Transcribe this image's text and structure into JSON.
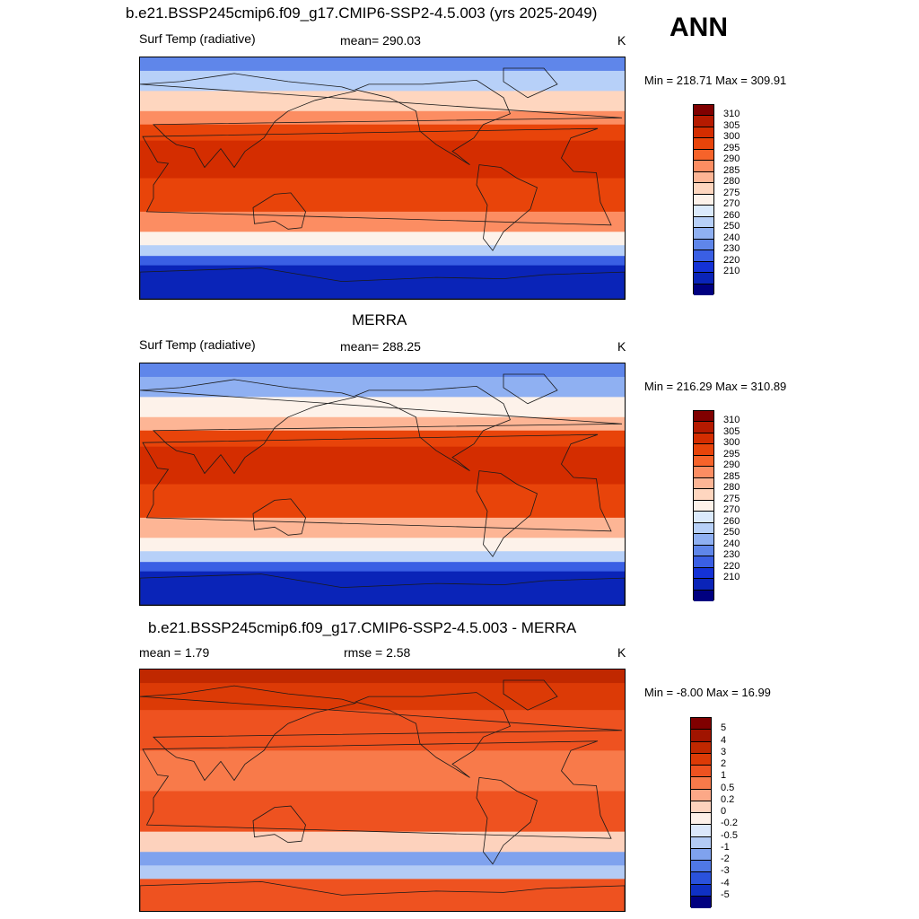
{
  "season": "ANN",
  "panels": [
    {
      "title": "b.e21.BSSP245cmip6.f09_g17.CMIP6-SSP2-4.5.003 (yrs 2025-2049)",
      "left_label": "Surf Temp (radiative)",
      "center_label": "mean= 290.03",
      "units": "K",
      "minmax": "Min = 218.71 Max = 309.91",
      "colorbar_labels": [
        "310",
        "305",
        "300",
        "295",
        "290",
        "285",
        "280",
        "275",
        "270",
        "260",
        "250",
        "240",
        "230",
        "220",
        "210"
      ],
      "colors": [
        "#800000",
        "#b51a00",
        "#d42d00",
        "#e8440a",
        "#f6632a",
        "#fc8d62",
        "#fdb595",
        "#fed6bf",
        "#fdf2ea",
        "#dbeafc",
        "#b7d0f8",
        "#8fb0f2",
        "#5f86ea",
        "#3a5fe4",
        "#1432d6",
        "#0a24b8",
        "#000080"
      ],
      "zones": [
        {
          "lat": 80,
          "colorIndex": 12
        },
        {
          "lat": 65,
          "colorIndex": 10
        },
        {
          "lat": 50,
          "colorIndex": 7
        },
        {
          "lat": 40,
          "colorIndex": 5
        },
        {
          "lat": 28,
          "colorIndex": 3
        },
        {
          "lat": 0,
          "colorIndex": 2
        },
        {
          "lat": -25,
          "colorIndex": 3
        },
        {
          "lat": -40,
          "colorIndex": 5
        },
        {
          "lat": -50,
          "colorIndex": 8
        },
        {
          "lat": -58,
          "colorIndex": 10
        },
        {
          "lat": -65,
          "colorIndex": 13
        },
        {
          "lat": -90,
          "colorIndex": 15
        }
      ]
    },
    {
      "title": "MERRA",
      "left_label": "Surf Temp (radiative)",
      "center_label": "mean= 288.25",
      "units": "K",
      "minmax": "Min = 216.29 Max = 310.89",
      "colorbar_labels": [
        "310",
        "305",
        "300",
        "295",
        "290",
        "285",
        "280",
        "275",
        "270",
        "260",
        "250",
        "240",
        "230",
        "220",
        "210"
      ],
      "colors": [
        "#800000",
        "#b51a00",
        "#d42d00",
        "#e8440a",
        "#f6632a",
        "#fc8d62",
        "#fdb595",
        "#fed6bf",
        "#fdf2ea",
        "#dbeafc",
        "#b7d0f8",
        "#8fb0f2",
        "#5f86ea",
        "#3a5fe4",
        "#1432d6",
        "#0a24b8",
        "#000080"
      ],
      "zones": [
        {
          "lat": 80,
          "colorIndex": 12
        },
        {
          "lat": 65,
          "colorIndex": 11
        },
        {
          "lat": 50,
          "colorIndex": 8
        },
        {
          "lat": 40,
          "colorIndex": 6
        },
        {
          "lat": 28,
          "colorIndex": 3
        },
        {
          "lat": 0,
          "colorIndex": 2
        },
        {
          "lat": -25,
          "colorIndex": 3
        },
        {
          "lat": -40,
          "colorIndex": 6
        },
        {
          "lat": -50,
          "colorIndex": 8
        },
        {
          "lat": -58,
          "colorIndex": 10
        },
        {
          "lat": -65,
          "colorIndex": 13
        },
        {
          "lat": -90,
          "colorIndex": 15
        }
      ]
    },
    {
      "title": "b.e21.BSSP245cmip6.f09_g17.CMIP6-SSP2-4.5.003 - MERRA",
      "left_label": "mean =   1.79",
      "center_label": "rmse =   2.58",
      "units": "K",
      "minmax": "Min =  -8.00 Max =  16.99",
      "colorbar_labels": [
        "5",
        "4",
        "3",
        "2",
        "1",
        "0.5",
        "0.2",
        "0",
        "-0.2",
        "-0.5",
        "-1",
        "-2",
        "-3",
        "-4",
        "-5"
      ],
      "colors": [
        "#800000",
        "#a01400",
        "#c02800",
        "#dc3a06",
        "#ee5220",
        "#f87a4a",
        "#fca887",
        "#fdd2bd",
        "#fdf0e8",
        "#dbe7fa",
        "#b3cbf5",
        "#7fa2ee",
        "#4f78e6",
        "#2a52dc",
        "#0f30c4",
        "#000080"
      ],
      "zones": [
        {
          "lat": 80,
          "colorIndex": 2
        },
        {
          "lat": 60,
          "colorIndex": 3
        },
        {
          "lat": 30,
          "colorIndex": 4
        },
        {
          "lat": 0,
          "colorIndex": 5
        },
        {
          "lat": -30,
          "colorIndex": 4
        },
        {
          "lat": -45,
          "colorIndex": 7
        },
        {
          "lat": -55,
          "colorIndex": 11
        },
        {
          "lat": -65,
          "colorIndex": 10
        },
        {
          "lat": -90,
          "colorIndex": 4
        }
      ]
    }
  ]
}
